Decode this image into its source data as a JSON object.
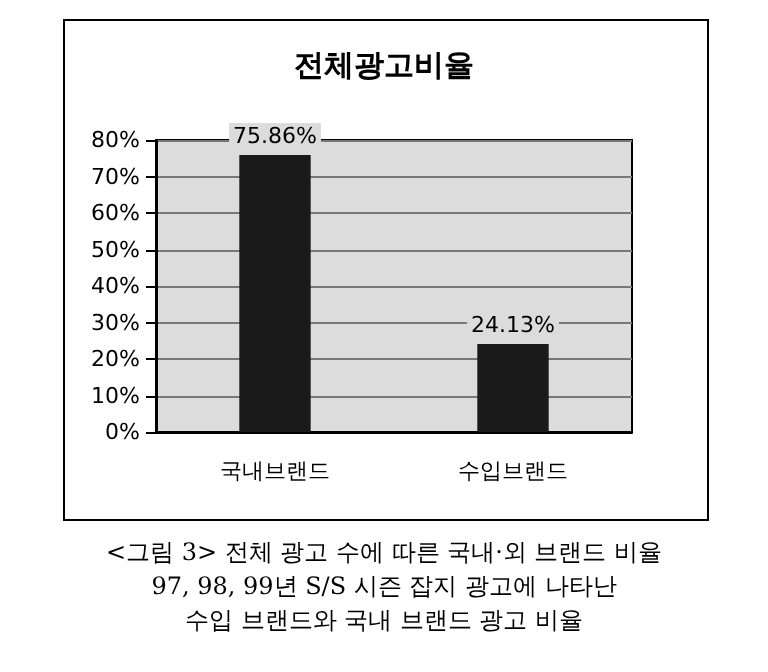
{
  "chart_data": {
    "type": "bar",
    "title": "전체광고비율",
    "categories": [
      "국내브랜드",
      "수입브랜드"
    ],
    "values": [
      75.86,
      24.13
    ],
    "value_labels": [
      "75.86%",
      "24.13%"
    ],
    "color": "#1a1a1a",
    "ylim": [
      0,
      80
    ],
    "yticks": [
      {
        "value": 0,
        "label": "0%"
      },
      {
        "value": 10,
        "label": "10%"
      },
      {
        "value": 20,
        "label": "20%"
      },
      {
        "value": 30,
        "label": "30%"
      },
      {
        "value": 40,
        "label": "40%"
      },
      {
        "value": 50,
        "label": "50%"
      },
      {
        "value": 60,
        "label": "60%"
      },
      {
        "value": 70,
        "label": "70%"
      },
      {
        "value": 80,
        "label": "80%"
      }
    ],
    "grid": "y",
    "annotations": [
      "<그림 3> 전체 광고 수에 따른 국내·외 브랜드 비율",
      "97, 98, 99년 S/S 시즌 잡지 광고에 나타난",
      "수입 브랜드와 국내 브랜드 광고 비율"
    ]
  }
}
